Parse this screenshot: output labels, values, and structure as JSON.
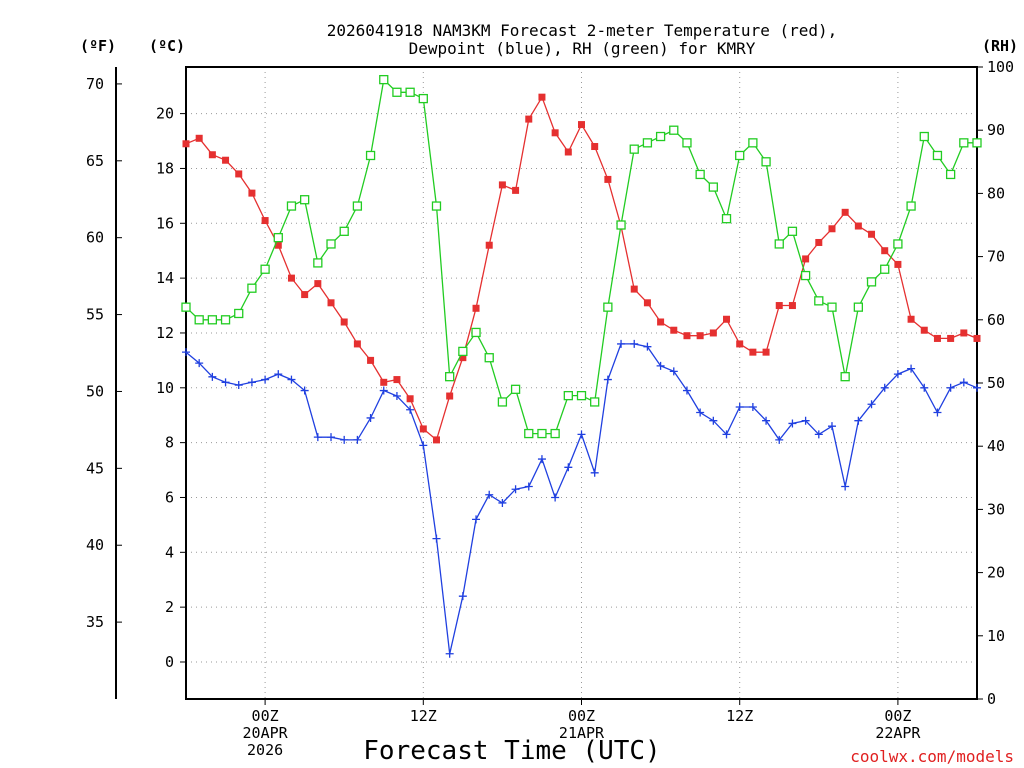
{
  "chart_data": {
    "type": "line",
    "title": [
      "2026041918 NAM3KM Forecast 2-meter Temperature (red),",
      "Dewpoint (blue), RH (green) for KMRY"
    ],
    "xlabel": "Forecast Time (UTC)",
    "credit": "coolwx.com/models",
    "units": {
      "fahrenheit": "(ºF)",
      "celsius": "(ºC)",
      "rh": "(RH)"
    },
    "x_ticks": [
      {
        "hour": 6,
        "lines": [
          "00Z",
          "20APR",
          "2026"
        ]
      },
      {
        "hour": 18,
        "lines": [
          "12Z"
        ]
      },
      {
        "hour": 30,
        "lines": [
          "00Z",
          "21APR"
        ]
      },
      {
        "hour": 42,
        "lines": [
          "12Z"
        ]
      },
      {
        "hour": 54,
        "lines": [
          "00Z",
          "22APR"
        ]
      }
    ],
    "x_range": [
      0,
      60
    ],
    "y_celsius": {
      "range": [
        -1.35,
        21.7
      ],
      "ticks": [
        0,
        2,
        4,
        6,
        8,
        10,
        12,
        14,
        16,
        18,
        20
      ]
    },
    "y_fahrenheit": {
      "range": [
        30,
        71.1
      ],
      "ticks": [
        35,
        40,
        45,
        50,
        55,
        60,
        65,
        70
      ]
    },
    "y_rh": {
      "range": [
        0,
        100
      ],
      "ticks": [
        0,
        10,
        20,
        30,
        40,
        50,
        60,
        70,
        80,
        90,
        100
      ]
    },
    "series": [
      {
        "name": "Temperature (°C)",
        "color": "#e53030",
        "marker": "filled-square",
        "axis": "celsius",
        "x": [
          0,
          1,
          2,
          3,
          4,
          5,
          6,
          7,
          8,
          9,
          10,
          11,
          12,
          13,
          14,
          15,
          16,
          17,
          18,
          19,
          20,
          21,
          22,
          23,
          24,
          25,
          26,
          27,
          28,
          29,
          30,
          31,
          32,
          33,
          34,
          35,
          36,
          37,
          38,
          39,
          40,
          41,
          42,
          43,
          44,
          45,
          46,
          47,
          48,
          49,
          50,
          51,
          52,
          53,
          54,
          55,
          56,
          57,
          58,
          59,
          60
        ],
        "values": [
          18.9,
          19.1,
          18.5,
          18.3,
          17.8,
          17.1,
          16.1,
          15.2,
          14.0,
          13.4,
          13.8,
          13.1,
          12.4,
          11.6,
          11.0,
          10.2,
          10.3,
          9.6,
          8.5,
          8.1,
          9.7,
          11.1,
          12.9,
          15.2,
          17.4,
          17.2,
          19.8,
          20.6,
          19.3,
          18.6,
          19.6,
          18.8,
          17.6,
          15.9,
          13.6,
          13.1,
          12.4,
          12.1,
          11.9,
          11.9,
          12.0,
          12.5,
          11.6,
          11.3,
          11.3,
          13.0,
          13.0,
          14.7,
          15.3,
          15.8,
          16.4,
          15.9,
          15.6,
          15.0,
          14.5,
          12.5,
          12.1,
          11.8,
          11.8,
          12.0,
          11.8
        ]
      },
      {
        "name": "Dewpoint (°C)",
        "color": "#2040e0",
        "marker": "plus",
        "axis": "celsius",
        "x": [
          0,
          1,
          2,
          3,
          4,
          5,
          6,
          7,
          8,
          9,
          10,
          11,
          12,
          13,
          14,
          15,
          16,
          17,
          18,
          19,
          20,
          21,
          22,
          23,
          24,
          25,
          26,
          27,
          28,
          29,
          30,
          31,
          32,
          33,
          34,
          35,
          36,
          37,
          38,
          39,
          40,
          41,
          42,
          43,
          44,
          45,
          46,
          47,
          48,
          49,
          50,
          51,
          52,
          53,
          54,
          55,
          56,
          57,
          58,
          59,
          60
        ],
        "values": [
          11.3,
          10.9,
          10.4,
          10.2,
          10.1,
          10.2,
          10.3,
          10.5,
          10.3,
          9.9,
          8.2,
          8.2,
          8.1,
          8.1,
          8.9,
          9.9,
          9.7,
          9.2,
          7.9,
          4.5,
          0.3,
          2.4,
          5.2,
          6.1,
          5.8,
          6.3,
          6.4,
          7.4,
          6.0,
          7.1,
          8.3,
          6.9,
          10.3,
          11.6,
          11.6,
          11.5,
          10.8,
          10.6,
          9.9,
          9.1,
          8.8,
          8.3,
          9.3,
          9.3,
          8.8,
          8.1,
          8.7,
          8.8,
          8.3,
          8.6,
          6.4,
          8.8,
          9.4,
          10.0,
          10.5,
          10.7,
          10.0,
          9.1,
          10.0,
          10.2,
          10.0
        ]
      },
      {
        "name": "RH (%)",
        "color": "#22cc22",
        "marker": "open-square",
        "axis": "rh",
        "x": [
          0,
          1,
          2,
          3,
          4,
          5,
          6,
          7,
          8,
          9,
          10,
          11,
          12,
          13,
          14,
          15,
          16,
          17,
          18,
          19,
          20,
          21,
          22,
          23,
          24,
          25,
          26,
          27,
          28,
          29,
          30,
          31,
          32,
          33,
          34,
          35,
          36,
          37,
          38,
          39,
          40,
          41,
          42,
          43,
          44,
          45,
          46,
          47,
          48,
          49,
          50,
          51,
          52,
          53,
          54,
          55,
          56,
          57,
          58,
          59,
          60
        ],
        "values": [
          62,
          60,
          60,
          60,
          61,
          65,
          68,
          73,
          78,
          79,
          69,
          72,
          74,
          78,
          86,
          98,
          96,
          96,
          95,
          78,
          51,
          55,
          58,
          54,
          47,
          49,
          42,
          42,
          42,
          48,
          48,
          47,
          62,
          75,
          87,
          88,
          89,
          90,
          88,
          83,
          81,
          76,
          86,
          88,
          85,
          72,
          74,
          67,
          63,
          62,
          51,
          62,
          66,
          68,
          72,
          78,
          89,
          86,
          83,
          88,
          88
        ]
      }
    ]
  }
}
